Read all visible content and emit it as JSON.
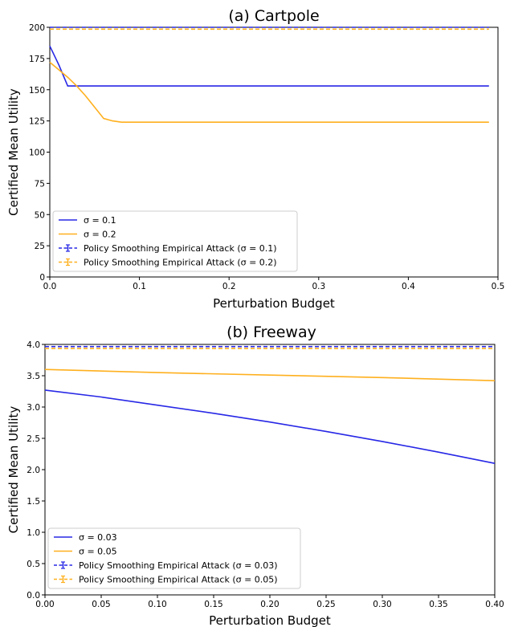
{
  "chart_data": [
    {
      "type": "line",
      "title": "(a) Cartpole",
      "xlabel": "Perturbation Budget",
      "ylabel": "Certified Mean Utility",
      "xlim": [
        0,
        0.5
      ],
      "ylim": [
        0,
        200
      ],
      "xticks": [
        0,
        0.1,
        0.2,
        0.3,
        0.4,
        0.5
      ],
      "xtick_labels": [
        "0.0",
        "0.1",
        "0.2",
        "0.3",
        "0.4",
        "0.5"
      ],
      "yticks": [
        0,
        25,
        50,
        75,
        100,
        125,
        150,
        175,
        200
      ],
      "ytick_labels": [
        "0",
        "25",
        "50",
        "75",
        "100",
        "125",
        "150",
        "175",
        "200"
      ],
      "grid": false,
      "legend_position": "lower-left",
      "series": [
        {
          "name": "σ = 0.1",
          "color": "#2828e6",
          "style": "solid",
          "x": [
            0,
            0.01,
            0.02,
            0.03,
            0.1,
            0.2,
            0.3,
            0.4,
            0.49
          ],
          "y": [
            185,
            170,
            153,
            153,
            153,
            153,
            153,
            153,
            153
          ]
        },
        {
          "name": "σ = 0.2",
          "color": "#ffb01e",
          "style": "solid",
          "x": [
            0,
            0.01,
            0.02,
            0.03,
            0.04,
            0.05,
            0.06,
            0.07,
            0.08,
            0.1,
            0.2,
            0.3,
            0.4,
            0.49
          ],
          "y": [
            172,
            166,
            160,
            153,
            145,
            136,
            127,
            125,
            124,
            124,
            124,
            124,
            124,
            124
          ]
        },
        {
          "name": "Policy Smoothing Empirical Attack (σ = 0.1)",
          "color": "#2828e6",
          "style": "dashed",
          "x": [
            0,
            0.1,
            0.2,
            0.3,
            0.4,
            0.49
          ],
          "y": [
            200,
            200,
            200,
            200,
            200,
            200
          ]
        },
        {
          "name": "Policy Smoothing Empirical Attack (σ = 0.2)",
          "color": "#ffb01e",
          "style": "dashed",
          "x": [
            0,
            0.1,
            0.2,
            0.3,
            0.4,
            0.49
          ],
          "y": [
            198.5,
            198.5,
            198.5,
            198.5,
            198.5,
            198.5
          ]
        }
      ]
    },
    {
      "type": "line",
      "title": "(b) Freeway",
      "xlabel": "Perturbation Budget",
      "ylabel": "Certified Mean Utility",
      "xlim": [
        0,
        0.4
      ],
      "ylim": [
        0,
        4.0
      ],
      "xticks": [
        0,
        0.05,
        0.1,
        0.15,
        0.2,
        0.25,
        0.3,
        0.35,
        0.4
      ],
      "xtick_labels": [
        "0.00",
        "0.05",
        "0.10",
        "0.15",
        "0.20",
        "0.25",
        "0.30",
        "0.35",
        "0.40"
      ],
      "yticks": [
        0,
        0.5,
        1.0,
        1.5,
        2.0,
        2.5,
        3.0,
        3.5,
        4.0
      ],
      "ytick_labels": [
        "0.0",
        "0.5",
        "1.0",
        "1.5",
        "2.0",
        "2.5",
        "3.0",
        "3.5",
        "4.0"
      ],
      "grid": false,
      "legend_position": "lower-left",
      "series": [
        {
          "name": "σ = 0.03",
          "color": "#2828e6",
          "style": "solid",
          "x": [
            0,
            0.05,
            0.1,
            0.15,
            0.2,
            0.25,
            0.3,
            0.35,
            0.4
          ],
          "y": [
            3.27,
            3.16,
            3.03,
            2.9,
            2.76,
            2.61,
            2.45,
            2.28,
            2.1
          ]
        },
        {
          "name": "σ = 0.05",
          "color": "#ffb01e",
          "style": "solid",
          "x": [
            0,
            0.1,
            0.2,
            0.3,
            0.4
          ],
          "y": [
            3.6,
            3.55,
            3.51,
            3.47,
            3.42
          ]
        },
        {
          "name": "Policy Smoothing Empirical Attack (σ = 0.03)",
          "color": "#2828e6",
          "style": "dashed",
          "x": [
            0,
            0.1,
            0.2,
            0.3,
            0.4
          ],
          "y": [
            3.965,
            3.965,
            3.965,
            3.965,
            3.965
          ]
        },
        {
          "name": "Policy Smoothing Empirical Attack (σ = 0.05)",
          "color": "#ffb01e",
          "style": "dashed",
          "x": [
            0,
            0.1,
            0.2,
            0.3,
            0.4
          ],
          "y": [
            3.935,
            3.935,
            3.935,
            3.935,
            3.935
          ]
        }
      ]
    }
  ]
}
